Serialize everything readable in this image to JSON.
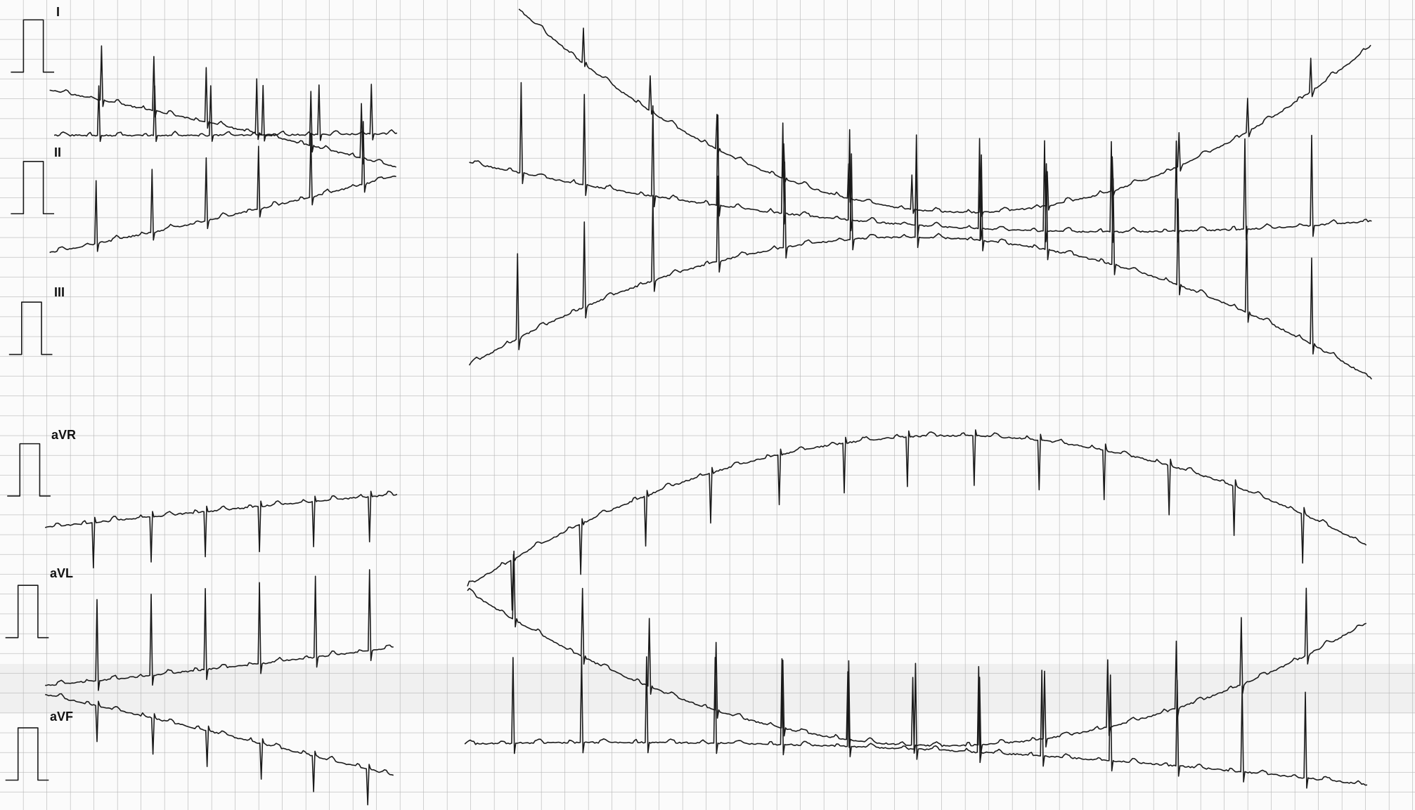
{
  "leads": [
    {
      "label": "I"
    },
    {
      "label": "II"
    },
    {
      "label": "III"
    },
    {
      "label": "aVR"
    },
    {
      "label": "aVL"
    },
    {
      "label": "aVF"
    }
  ]
}
